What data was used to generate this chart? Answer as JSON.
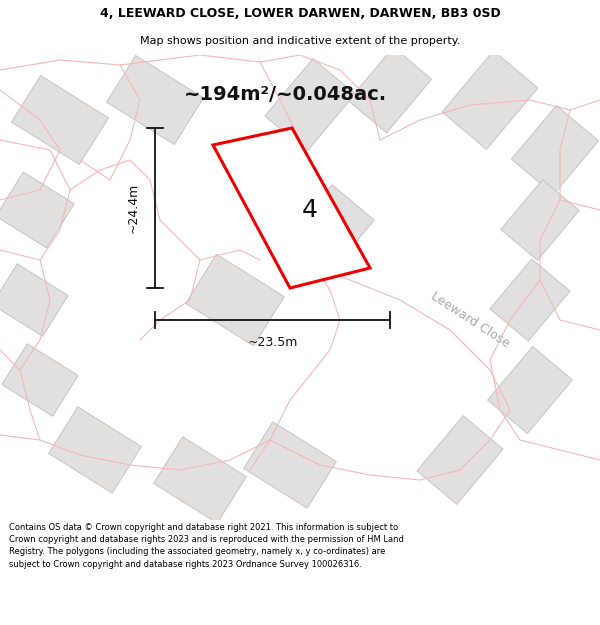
{
  "title_line1": "4, LEEWARD CLOSE, LOWER DARWEN, DARWEN, BB3 0SD",
  "title_line2": "Map shows position and indicative extent of the property.",
  "area_text": "~194m²/~0.048ac.",
  "property_number": "4",
  "dim_width": "~23.5m",
  "dim_height": "~24.4m",
  "street_label": "Leeward Close",
  "footer_text": "Contains OS data © Crown copyright and database right 2021. This information is subject to Crown copyright and database rights 2023 and is reproduced with the permission of HM Land Registry. The polygons (including the associated geometry, namely x, y co-ordinates) are subject to Crown copyright and database rights 2023 Ordnance Survey 100026316.",
  "map_bg": "#f7f5f5",
  "plot_color": "#ee0000",
  "plot_fill": "#ffffff",
  "building_fill": "#e2dfdf",
  "building_edge": "#c8c4c4",
  "parcel_color": "#f5b8b8",
  "road_fill": "#ffffff",
  "street_label_color": "#aaaaaa",
  "title_bg": "#ffffff",
  "footer_bg": "#ffffff",
  "dim_color": "#111111",
  "area_fontsize": 14,
  "prop_num_fontsize": 18
}
